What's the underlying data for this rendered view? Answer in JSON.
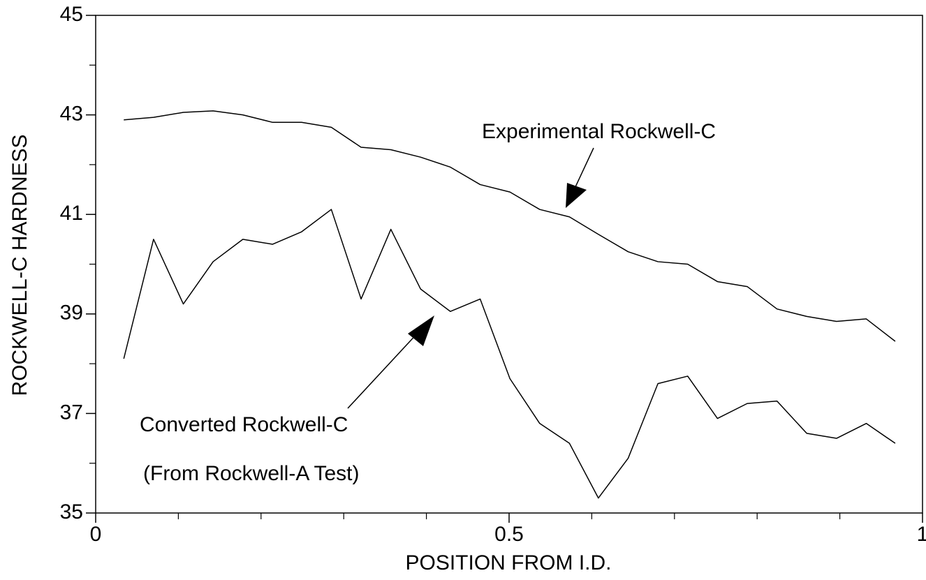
{
  "chart_data": {
    "type": "line",
    "xlabel": "POSITION FROM I.D.",
    "ylabel": "ROCKWELL-C HARDNESS",
    "x": [
      0.034,
      0.07,
      0.106,
      0.142,
      0.178,
      0.214,
      0.249,
      0.285,
      0.321,
      0.357,
      0.393,
      0.429,
      0.465,
      0.501,
      0.537,
      0.573,
      0.608,
      0.644,
      0.68,
      0.716,
      0.752,
      0.788,
      0.824,
      0.86,
      0.896,
      0.932,
      0.967
    ],
    "series": [
      {
        "name": "Experimental Rockwell-C",
        "color": "#000000",
        "values": [
          42.9,
          42.95,
          43.05,
          43.08,
          43.0,
          42.85,
          42.85,
          42.75,
          42.35,
          42.3,
          42.15,
          41.95,
          41.6,
          41.45,
          41.1,
          40.95,
          40.6,
          40.25,
          40.05,
          40.0,
          39.65,
          39.55,
          39.1,
          38.95,
          38.85,
          38.9,
          38.45
        ]
      },
      {
        "name": "Converted Rockwell-C",
        "color": "#000000",
        "values": [
          38.1,
          40.5,
          39.2,
          40.05,
          40.5,
          40.4,
          40.65,
          41.1,
          39.3,
          40.7,
          39.5,
          39.05,
          39.3,
          37.7,
          36.8,
          36.4,
          35.3,
          36.1,
          37.6,
          37.75,
          36.9,
          37.2,
          37.25,
          36.6,
          36.5,
          36.8,
          36.4
        ]
      }
    ],
    "annotations": [
      "(From Rockwell-A Test)"
    ],
    "xlim": [
      0,
      1
    ],
    "xticks": [
      0,
      0.5,
      1
    ],
    "xminorticks": [
      0.1,
      0.2,
      0.3,
      0.4,
      0.6,
      0.7,
      0.8,
      0.9
    ],
    "ylim": [
      35,
      45
    ],
    "yticks": [
      35,
      37,
      39,
      41,
      43,
      45
    ],
    "yminorticks": [
      36,
      38,
      40,
      42,
      44
    ],
    "grid": false
  }
}
